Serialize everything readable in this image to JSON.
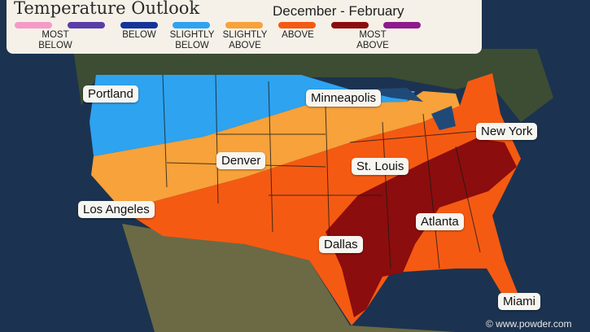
{
  "title": "Temperature Outlook",
  "period": "December - February",
  "legend": [
    {
      "color": "#f59ac8",
      "label": "MOST BELOW",
      "label_line1": "MOST",
      "label_line2": "BELOW"
    },
    {
      "color": "#5a3ea8"
    },
    {
      "color": "#14349a",
      "label": "BELOW"
    },
    {
      "color": "#2ea3f0",
      "label": "SLIGHTLY BELOW",
      "label_line1": "SLIGHTLY",
      "label_line2": "BELOW"
    },
    {
      "color": "#f7a23a",
      "label": "SLIGHTLY ABOVE",
      "label_line1": "SLIGHTLY",
      "label_line2": "ABOVE"
    },
    {
      "color": "#f55a12",
      "label": "ABOVE"
    },
    {
      "color": "#8c0d0d",
      "label": "MOST ABOVE",
      "label_line1": "MOST",
      "label_line2": "ABOVE"
    },
    {
      "color": "#8e1a8e"
    }
  ],
  "cities": [
    "Portland",
    "Minneapolis",
    "New York",
    "Denver",
    "St. Louis",
    "Los Angeles",
    "Atlanta",
    "Dallas",
    "Miami"
  ],
  "watermark": "© www.powder.com"
}
